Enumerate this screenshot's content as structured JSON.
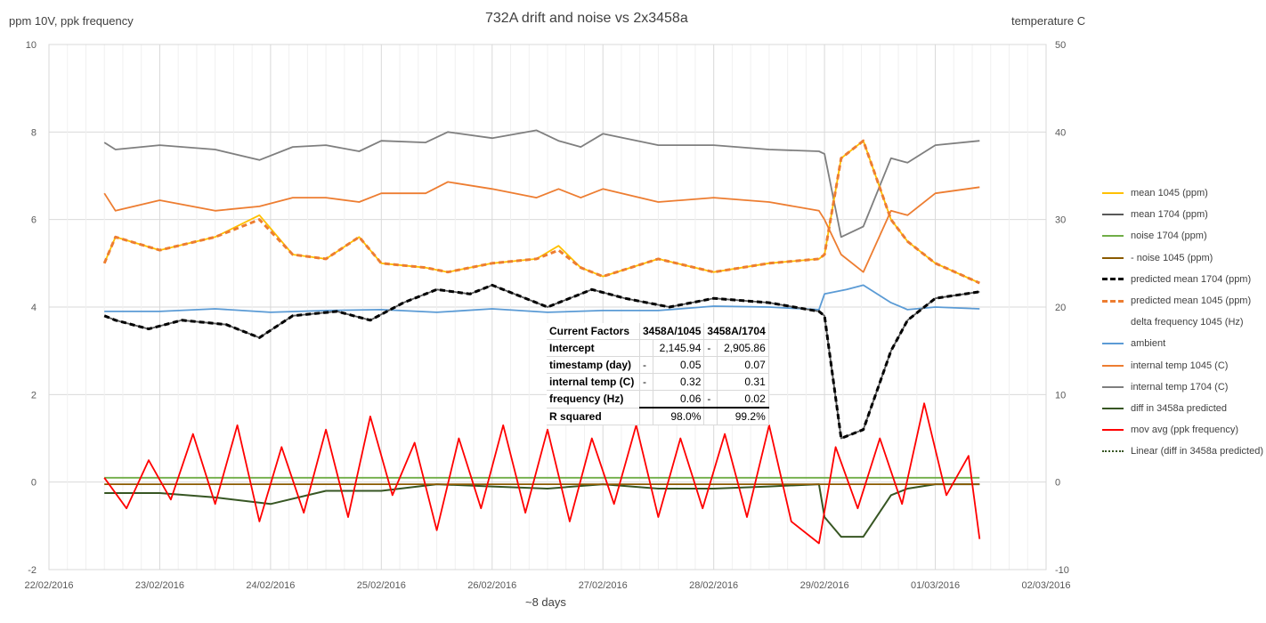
{
  "chart_data": {
    "type": "line",
    "title": "732A drift and noise vs 2x3458a",
    "ylabel_left": "ppm 10V, ppk frequency",
    "ylabel_right": "temperature  C",
    "xlabel": "~8 days",
    "y_left_range": [
      -2,
      10
    ],
    "y_right_range": [
      -10,
      50
    ],
    "y_left_ticks": [
      "-2",
      "0",
      "2",
      "4",
      "6",
      "8",
      "10"
    ],
    "y_right_ticks": [
      "-10",
      "0",
      "10",
      "20",
      "30",
      "40",
      "50"
    ],
    "x_ticks": [
      "22/02/2016",
      "23/02/2016",
      "24/02/2016",
      "25/02/2016",
      "26/02/2016",
      "27/02/2016",
      "28/02/2016",
      "29/02/2016",
      "01/03/2016",
      "02/03/2016"
    ],
    "grid": "vertical and horizontal major gridlines",
    "legend_position": "right",
    "series": [
      {
        "name": "mean 1045 (ppm)",
        "axis": "left",
        "color": "#ffc000",
        "x": [
          22.5,
          22.6,
          23.0,
          23.5,
          23.9,
          24.2,
          24.5,
          24.8,
          25.0,
          25.4,
          25.6,
          26.0,
          26.4,
          26.6,
          26.8,
          27.0,
          27.5,
          28.0,
          28.5,
          28.95,
          29.0,
          29.15,
          29.35,
          29.6,
          29.75,
          30.0,
          30.4
        ],
        "y": [
          5.0,
          5.6,
          5.3,
          5.6,
          6.1,
          5.2,
          5.1,
          5.6,
          5.0,
          4.9,
          4.8,
          5.0,
          5.1,
          5.4,
          4.9,
          4.7,
          5.1,
          4.8,
          5.0,
          5.1,
          5.2,
          7.4,
          7.8,
          6.0,
          5.5,
          5.0,
          4.55
        ]
      },
      {
        "name": "mean 1704 (ppm)",
        "axis": "left",
        "color": "#595959",
        "x": [
          22.5,
          22.6,
          22.9,
          23.2,
          23.6,
          23.9,
          24.2,
          24.6,
          24.9,
          25.2,
          25.5,
          25.8,
          26.0,
          26.5,
          26.9,
          27.2,
          27.6,
          28.0,
          28.5,
          28.95,
          29.0,
          29.15,
          29.35,
          29.6,
          29.75,
          30.0,
          30.4
        ],
        "y": [
          3.8,
          3.7,
          3.5,
          3.7,
          3.6,
          3.3,
          3.8,
          3.9,
          3.7,
          4.1,
          4.4,
          4.3,
          4.5,
          4.0,
          4.4,
          4.2,
          4.0,
          4.2,
          4.1,
          3.9,
          3.8,
          1.0,
          1.2,
          3.0,
          3.7,
          4.2,
          4.35
        ]
      },
      {
        "name": "noise 1704 (ppm)",
        "axis": "left",
        "color": "#70ad47",
        "x": [
          22.5,
          30.4
        ],
        "y": [
          0.1,
          0.1
        ]
      },
      {
        "name": "- noise 1045 (ppm)",
        "axis": "left",
        "color": "#8a5a00",
        "x": [
          22.5,
          30.4
        ],
        "y": [
          -0.05,
          -0.05
        ]
      },
      {
        "name": "predicted mean 1704 (ppm)",
        "axis": "left",
        "color": "#000000",
        "dash": true,
        "x": [
          22.5,
          22.6,
          22.9,
          23.2,
          23.6,
          23.9,
          24.2,
          24.6,
          24.9,
          25.2,
          25.5,
          25.8,
          26.0,
          26.5,
          26.9,
          27.2,
          27.6,
          28.0,
          28.5,
          28.95,
          29.0,
          29.15,
          29.35,
          29.6,
          29.75,
          30.0,
          30.4
        ],
        "y": [
          3.8,
          3.7,
          3.5,
          3.7,
          3.6,
          3.3,
          3.8,
          3.9,
          3.7,
          4.1,
          4.4,
          4.3,
          4.5,
          4.0,
          4.4,
          4.2,
          4.0,
          4.2,
          4.1,
          3.9,
          3.8,
          1.0,
          1.2,
          3.0,
          3.7,
          4.2,
          4.35
        ]
      },
      {
        "name": "predicted mean 1045 (ppm)",
        "axis": "left",
        "color": "#ed7d31",
        "dash": true,
        "x": [
          22.5,
          22.6,
          23.0,
          23.5,
          23.9,
          24.2,
          24.5,
          24.8,
          25.0,
          25.4,
          25.6,
          26.0,
          26.4,
          26.6,
          26.8,
          27.0,
          27.5,
          28.0,
          28.5,
          28.95,
          29.0,
          29.15,
          29.35,
          29.6,
          29.75,
          30.0,
          30.4
        ],
        "y": [
          5.0,
          5.6,
          5.3,
          5.6,
          6.0,
          5.2,
          5.1,
          5.6,
          5.0,
          4.9,
          4.8,
          5.0,
          5.1,
          5.3,
          4.9,
          4.7,
          5.1,
          4.8,
          5.0,
          5.1,
          5.2,
          7.4,
          7.8,
          6.0,
          5.5,
          5.0,
          4.55
        ]
      },
      {
        "name": "delta frequency 1045 (Hz)",
        "axis": "left",
        "color": "#ffffff",
        "x": [],
        "y": []
      },
      {
        "name": "ambient",
        "axis": "right",
        "color": "#5b9bd5",
        "x": [
          22.5,
          23.0,
          23.5,
          24.0,
          24.5,
          25.0,
          25.5,
          26.0,
          26.5,
          27.0,
          27.5,
          28.0,
          28.5,
          28.95,
          29.0,
          29.2,
          29.35,
          29.6,
          29.75,
          30.0,
          30.4
        ],
        "y": [
          19.5,
          19.5,
          19.8,
          19.4,
          19.6,
          19.7,
          19.4,
          19.8,
          19.4,
          19.6,
          19.6,
          20.1,
          20.0,
          19.7,
          21.5,
          22.0,
          22.5,
          20.5,
          19.7,
          20.0,
          19.8
        ]
      },
      {
        "name": "internal temp 1045 (C)",
        "axis": "right",
        "color": "#ed7d31",
        "x": [
          22.5,
          22.6,
          23.0,
          23.5,
          23.9,
          24.2,
          24.5,
          24.8,
          25.0,
          25.4,
          25.6,
          26.0,
          26.4,
          26.6,
          26.8,
          27.0,
          27.5,
          28.0,
          28.5,
          28.95,
          29.0,
          29.15,
          29.35,
          29.6,
          29.75,
          30.0,
          30.4
        ],
        "y": [
          33.0,
          31.0,
          32.2,
          31.0,
          31.5,
          32.5,
          32.5,
          32.0,
          33.0,
          33.0,
          34.3,
          33.5,
          32.5,
          33.5,
          32.5,
          33.5,
          32.0,
          32.5,
          32.0,
          31.0,
          30.0,
          26.0,
          24.0,
          31.0,
          30.5,
          33.0,
          33.7
        ]
      },
      {
        "name": "internal temp 1704 (C)",
        "axis": "right",
        "color": "#7f7f7f",
        "x": [
          22.5,
          22.6,
          23.0,
          23.5,
          23.9,
          24.2,
          24.5,
          24.8,
          25.0,
          25.4,
          25.6,
          26.0,
          26.4,
          26.6,
          26.8,
          27.0,
          27.5,
          28.0,
          28.5,
          28.95,
          29.0,
          29.15,
          29.35,
          29.6,
          29.75,
          30.0,
          30.4
        ],
        "y": [
          38.8,
          38.0,
          38.5,
          38.0,
          36.8,
          38.3,
          38.5,
          37.8,
          39.0,
          38.8,
          40.0,
          39.3,
          40.2,
          39.0,
          38.3,
          39.8,
          38.5,
          38.5,
          38.0,
          37.8,
          37.5,
          28.0,
          29.2,
          37.0,
          36.5,
          38.5,
          39.0
        ]
      },
      {
        "name": "diff in 3458a predicted",
        "axis": "left",
        "color": "#375623",
        "x": [
          22.5,
          23.0,
          23.5,
          24.0,
          24.5,
          25.0,
          25.5,
          26.0,
          26.5,
          27.0,
          27.5,
          28.0,
          28.5,
          28.95,
          29.0,
          29.15,
          29.35,
          29.6,
          29.75,
          30.0,
          30.4
        ],
        "y": [
          -0.25,
          -0.25,
          -0.35,
          -0.5,
          -0.2,
          -0.2,
          -0.05,
          -0.1,
          -0.15,
          -0.05,
          -0.15,
          -0.15,
          -0.1,
          -0.05,
          -0.8,
          -1.25,
          -1.25,
          -0.3,
          -0.15,
          -0.05,
          -0.05
        ]
      },
      {
        "name": "mov avg (ppk frequency)",
        "axis": "left",
        "color": "#ff0000",
        "x": [
          22.5,
          22.7,
          22.9,
          23.1,
          23.3,
          23.5,
          23.7,
          23.9,
          24.1,
          24.3,
          24.5,
          24.7,
          24.9,
          25.1,
          25.3,
          25.5,
          25.7,
          25.9,
          26.1,
          26.3,
          26.5,
          26.7,
          26.9,
          27.1,
          27.3,
          27.5,
          27.7,
          27.9,
          28.1,
          28.3,
          28.5,
          28.7,
          28.95,
          29.1,
          29.3,
          29.5,
          29.7,
          29.9,
          30.1,
          30.3,
          30.4
        ],
        "y": [
          0.1,
          -0.6,
          0.5,
          -0.4,
          1.1,
          -0.5,
          1.3,
          -0.9,
          0.8,
          -0.7,
          1.2,
          -0.8,
          1.5,
          -0.3,
          0.9,
          -1.1,
          1.0,
          -0.6,
          1.3,
          -0.7,
          1.2,
          -0.9,
          1.0,
          -0.5,
          1.3,
          -0.8,
          1.0,
          -0.6,
          1.1,
          -0.8,
          1.3,
          -0.9,
          -1.4,
          0.8,
          -0.6,
          1.0,
          -0.5,
          1.8,
          -0.3,
          0.6,
          -1.3
        ]
      },
      {
        "name": "Linear (diff in 3458a predicted)",
        "axis": "left",
        "color": "#375623",
        "dotted": true,
        "x": [
          22.5,
          30.4
        ],
        "y": [
          -0.3,
          -0.3
        ]
      }
    ],
    "table": {
      "header": [
        "Current Factors",
        "3458A/1045",
        "3458A/1704"
      ],
      "rows": [
        {
          "label": "Intercept",
          "s1": "",
          "v1": "2,145.94",
          "s2": "-",
          "v2": "2,905.86"
        },
        {
          "label": "timestamp (day)",
          "s1": "-",
          "v1": "0.05",
          "s2": "",
          "v2": "0.07"
        },
        {
          "label": "internal temp (C)",
          "s1": "-",
          "v1": "0.32",
          "s2": "",
          "v2": "0.31"
        },
        {
          "label": "frequency (Hz)",
          "s1": "",
          "v1": "0.06",
          "s2": "-",
          "v2": "0.02"
        },
        {
          "label": "R squared",
          "s1": "",
          "v1": "98.0%",
          "s2": "",
          "v2": "99.2%"
        }
      ]
    }
  }
}
